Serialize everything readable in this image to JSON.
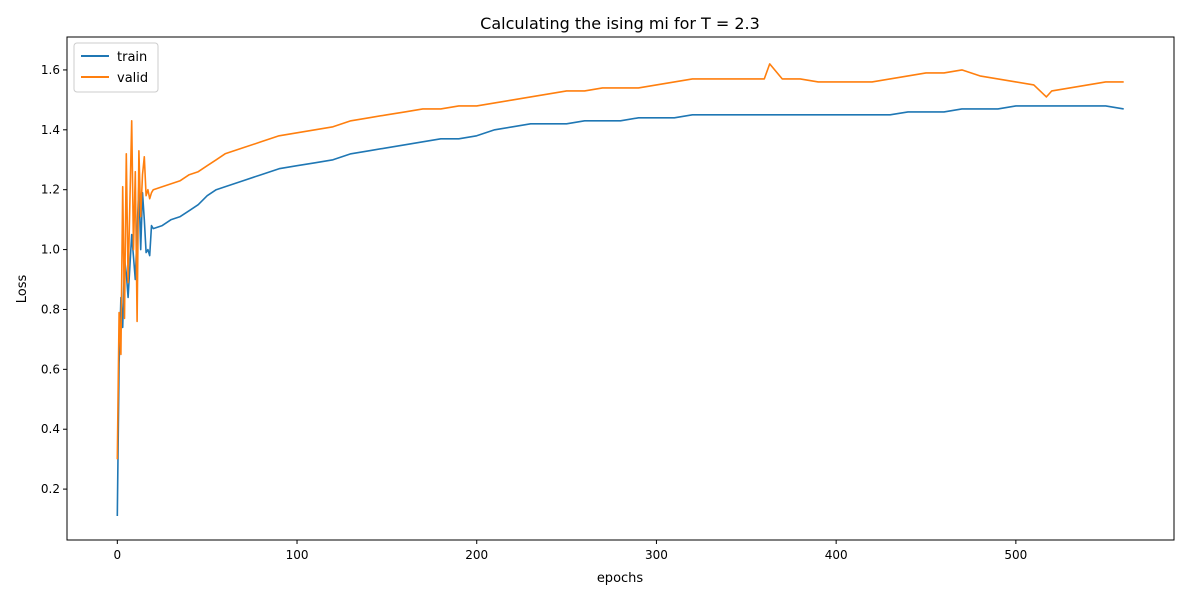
{
  "chart_data": {
    "type": "line",
    "title": "Calculating the ising mi for T = 2.3",
    "xlabel": "epochs",
    "ylabel": "Loss",
    "xlim": [
      -28,
      588
    ],
    "ylim": [
      0.03,
      1.71
    ],
    "xticks": [
      0,
      100,
      200,
      300,
      400,
      500
    ],
    "yticks": [
      0.2,
      0.4,
      0.6,
      0.8,
      1.0,
      1.2,
      1.4,
      1.6
    ],
    "legend_position": "top-left",
    "grid": false,
    "series": [
      {
        "name": "train",
        "color": "#1f77b4",
        "x": [
          0,
          1,
          2,
          3,
          4,
          5,
          6,
          8,
          10,
          12,
          13,
          14,
          15,
          16,
          17,
          18,
          19,
          20,
          25,
          30,
          35,
          40,
          45,
          50,
          55,
          60,
          70,
          80,
          90,
          100,
          110,
          120,
          130,
          140,
          150,
          160,
          170,
          180,
          190,
          200,
          210,
          220,
          230,
          240,
          250,
          260,
          270,
          280,
          290,
          300,
          310,
          320,
          330,
          340,
          350,
          360,
          370,
          380,
          390,
          400,
          410,
          420,
          430,
          440,
          450,
          460,
          470,
          480,
          490,
          500,
          510,
          520,
          530,
          540,
          550,
          560
        ],
        "y": [
          0.11,
          0.62,
          0.84,
          0.74,
          0.97,
          0.92,
          0.84,
          1.05,
          0.9,
          1.22,
          1.0,
          1.19,
          1.1,
          0.99,
          1.0,
          0.98,
          1.08,
          1.07,
          1.08,
          1.1,
          1.11,
          1.13,
          1.15,
          1.18,
          1.2,
          1.21,
          1.23,
          1.25,
          1.27,
          1.28,
          1.29,
          1.3,
          1.32,
          1.33,
          1.34,
          1.35,
          1.36,
          1.37,
          1.37,
          1.38,
          1.4,
          1.41,
          1.42,
          1.42,
          1.42,
          1.43,
          1.43,
          1.43,
          1.44,
          1.44,
          1.44,
          1.45,
          1.45,
          1.45,
          1.45,
          1.45,
          1.45,
          1.45,
          1.45,
          1.45,
          1.45,
          1.45,
          1.45,
          1.46,
          1.46,
          1.46,
          1.47,
          1.47,
          1.47,
          1.48,
          1.48,
          1.48,
          1.48,
          1.48,
          1.48,
          1.47
        ]
      },
      {
        "name": "valid",
        "color": "#ff7f0e",
        "x": [
          0,
          1,
          2,
          3,
          4,
          5,
          6,
          7,
          8,
          9,
          10,
          11,
          12,
          13,
          14,
          15,
          16,
          17,
          18,
          19,
          20,
          25,
          30,
          35,
          40,
          45,
          50,
          55,
          60,
          70,
          80,
          90,
          100,
          110,
          120,
          130,
          140,
          150,
          160,
          170,
          180,
          190,
          200,
          210,
          220,
          230,
          240,
          250,
          260,
          270,
          280,
          290,
          300,
          310,
          320,
          330,
          340,
          350,
          360,
          363,
          370,
          380,
          390,
          400,
          410,
          420,
          430,
          440,
          450,
          460,
          470,
          480,
          490,
          500,
          510,
          517,
          520,
          530,
          540,
          550,
          560
        ],
        "y": [
          0.3,
          0.79,
          0.65,
          1.21,
          0.77,
          1.32,
          0.89,
          1.16,
          1.43,
          1.0,
          1.26,
          0.76,
          1.33,
          1.11,
          1.25,
          1.31,
          1.18,
          1.2,
          1.17,
          1.19,
          1.2,
          1.21,
          1.22,
          1.23,
          1.25,
          1.26,
          1.28,
          1.3,
          1.32,
          1.34,
          1.36,
          1.38,
          1.39,
          1.4,
          1.41,
          1.43,
          1.44,
          1.45,
          1.46,
          1.47,
          1.47,
          1.48,
          1.48,
          1.49,
          1.5,
          1.51,
          1.52,
          1.53,
          1.53,
          1.54,
          1.54,
          1.54,
          1.55,
          1.56,
          1.57,
          1.57,
          1.57,
          1.57,
          1.57,
          1.62,
          1.57,
          1.57,
          1.56,
          1.56,
          1.56,
          1.56,
          1.57,
          1.58,
          1.59,
          1.59,
          1.6,
          1.58,
          1.57,
          1.56,
          1.55,
          1.51,
          1.53,
          1.54,
          1.55,
          1.56,
          1.56
        ]
      }
    ]
  }
}
